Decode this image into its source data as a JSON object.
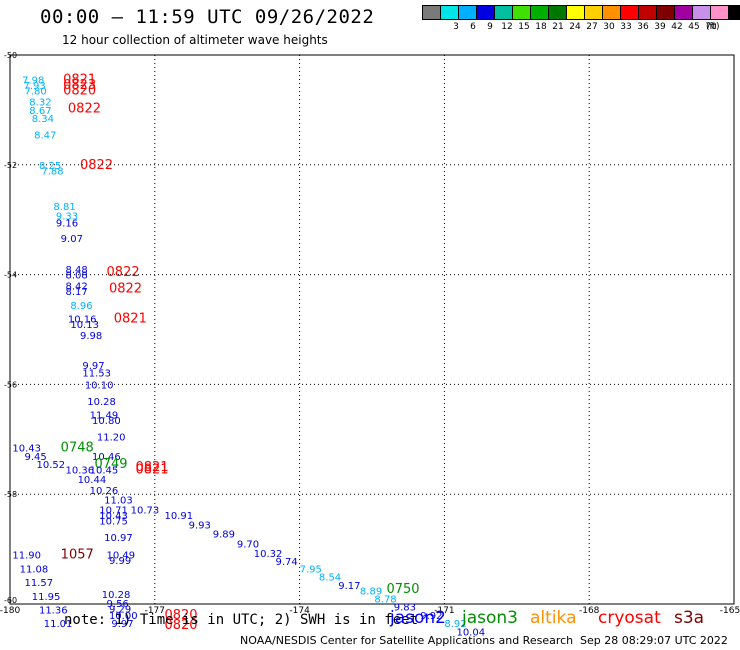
{
  "header": {
    "title": "00:00 — 11:59 UTC 09/26/2022",
    "subtitle": "12 hour collection of altimeter wave heights"
  },
  "legend": {
    "unit": "(ft)",
    "items": [
      {
        "label": "",
        "color": "#7a7a7a"
      },
      {
        "label": "3",
        "color": "#00e5e5"
      },
      {
        "label": "6",
        "color": "#00b0ff"
      },
      {
        "label": "9",
        "color": "#0000e0"
      },
      {
        "label": "12",
        "color": "#00c0a0"
      },
      {
        "label": "15",
        "color": "#40e000"
      },
      {
        "label": "18",
        "color": "#00b000"
      },
      {
        "label": "21",
        "color": "#007800"
      },
      {
        "label": "24",
        "color": "#ffff00"
      },
      {
        "label": "27",
        "color": "#ffd000"
      },
      {
        "label": "30",
        "color": "#ff9000"
      },
      {
        "label": "33",
        "color": "#ff0000"
      },
      {
        "label": "36",
        "color": "#c00000"
      },
      {
        "label": "39",
        "color": "#800000"
      },
      {
        "label": "42",
        "color": "#a000a0"
      },
      {
        "label": "45",
        "color": "#c890e8"
      },
      {
        "label": "70",
        "color": "#ff90c8"
      },
      {
        "label": "",
        "color": "#000000"
      }
    ]
  },
  "footer": {
    "note": "note: 1) Time is in UTC; 2) SWH is in feet",
    "satellites": [
      {
        "name": "jason2",
        "color": "#0000ff"
      },
      {
        "name": "jason3",
        "color": "#009000"
      },
      {
        "name": "altika",
        "color": "#ff9000"
      },
      {
        "name": "cryosat",
        "color": "#ff0000"
      },
      {
        "name": "s3a",
        "color": "#800000"
      }
    ],
    "credit": "NOAA/NESDIS Center for Satellite Applications and Research",
    "timestamp": "Sep 28 08:29:07 UTC 2022"
  },
  "chart_data": {
    "type": "scatter",
    "xlim": [
      -180,
      -165
    ],
    "ylim": [
      -60,
      -50
    ],
    "x_ticks": [
      "-180",
      "-177",
      "-174",
      "-171",
      "-168",
      "-165"
    ],
    "y_ticks": [
      "-50",
      "-52",
      "-54",
      "-56",
      "-58",
      "-60"
    ],
    "grid": true,
    "labels": [
      {
        "x": -179.75,
        "y": -50.45,
        "text": "7.98",
        "color": "#00b0ff"
      },
      {
        "x": -179.72,
        "y": -50.55,
        "text": "7.93",
        "color": "#00b0ff"
      },
      {
        "x": -179.7,
        "y": -50.65,
        "text": "7.80",
        "color": "#00b0ff"
      },
      {
        "x": -178.9,
        "y": -50.45,
        "text": "0821",
        "color": "#ff0000"
      },
      {
        "x": -178.9,
        "y": -50.55,
        "text": "0823",
        "color": "#ff0000"
      },
      {
        "x": -178.9,
        "y": -50.65,
        "text": "0820",
        "color": "#ff0000"
      },
      {
        "x": -179.6,
        "y": -50.85,
        "text": "8.32",
        "color": "#00b0ff"
      },
      {
        "x": -179.6,
        "y": -51.0,
        "text": "8.67",
        "color": "#00b0ff"
      },
      {
        "x": -178.8,
        "y": -50.97,
        "text": "0822",
        "color": "#ff0000"
      },
      {
        "x": -179.55,
        "y": -51.15,
        "text": "8.34",
        "color": "#00b0ff"
      },
      {
        "x": -179.5,
        "y": -51.45,
        "text": "8.47",
        "color": "#00b0ff"
      },
      {
        "x": -179.4,
        "y": -52.0,
        "text": "8.25",
        "color": "#00b0ff"
      },
      {
        "x": -179.35,
        "y": -52.1,
        "text": "7.88",
        "color": "#00b0ff"
      },
      {
        "x": -178.55,
        "y": -52.0,
        "text": "0822",
        "color": "#ff0000"
      },
      {
        "x": -179.1,
        "y": -52.75,
        "text": "8.81",
        "color": "#00b0ff"
      },
      {
        "x": -179.05,
        "y": -52.92,
        "text": "9.33",
        "color": "#00b0ff"
      },
      {
        "x": -179.05,
        "y": -53.05,
        "text": "9.16",
        "color": "#0000e0"
      },
      {
        "x": -178.95,
        "y": -53.33,
        "text": "9.07",
        "color": "#0000e0"
      },
      {
        "x": -178.85,
        "y": -53.9,
        "text": "8.48",
        "color": "#0000e0"
      },
      {
        "x": -178.85,
        "y": -54.0,
        "text": "8.08",
        "color": "#0000e0"
      },
      {
        "x": -178.0,
        "y": -53.95,
        "text": "0822",
        "color": "#ff0000"
      },
      {
        "x": -178.85,
        "y": -54.2,
        "text": "8.42",
        "color": "#0000e0"
      },
      {
        "x": -178.85,
        "y": -54.3,
        "text": "8.17",
        "color": "#0000e0"
      },
      {
        "x": -177.95,
        "y": -54.25,
        "text": "0822",
        "color": "#ff0000"
      },
      {
        "x": -178.75,
        "y": -54.55,
        "text": "8.96",
        "color": "#00b0ff"
      },
      {
        "x": -178.8,
        "y": -54.8,
        "text": "10.16",
        "color": "#0000e0"
      },
      {
        "x": -178.75,
        "y": -54.9,
        "text": "10.13",
        "color": "#0000e0"
      },
      {
        "x": -177.85,
        "y": -54.8,
        "text": "0821",
        "color": "#ff0000"
      },
      {
        "x": -178.55,
        "y": -55.1,
        "text": "9.98",
        "color": "#0000e0"
      },
      {
        "x": -178.5,
        "y": -55.65,
        "text": "9.97",
        "color": "#0000e0"
      },
      {
        "x": -178.5,
        "y": -55.78,
        "text": "11.53",
        "color": "#0000e0"
      },
      {
        "x": -178.45,
        "y": -56.0,
        "text": "10.10",
        "color": "#0000e0"
      },
      {
        "x": -178.4,
        "y": -56.3,
        "text": "10.28",
        "color": "#0000e0"
      },
      {
        "x": -178.35,
        "y": -56.55,
        "text": "11.49",
        "color": "#0000e0"
      },
      {
        "x": -178.3,
        "y": -56.65,
        "text": "10.80",
        "color": "#0000e0"
      },
      {
        "x": -178.2,
        "y": -56.95,
        "text": "11.20",
        "color": "#0000e0"
      },
      {
        "x": -179.95,
        "y": -57.15,
        "text": "10.43",
        "color": "#0000e0"
      },
      {
        "x": -178.95,
        "y": -57.15,
        "text": "0748",
        "color": "#009000"
      },
      {
        "x": -179.7,
        "y": -57.3,
        "text": "9.45",
        "color": "#0000e0"
      },
      {
        "x": -178.3,
        "y": -57.3,
        "text": "10.46",
        "color": "#0000e0"
      },
      {
        "x": -179.45,
        "y": -57.45,
        "text": "10.52",
        "color": "#0000e0"
      },
      {
        "x": -178.25,
        "y": -57.45,
        "text": "0749",
        "color": "#009000"
      },
      {
        "x": -177.4,
        "y": -57.5,
        "text": "0821",
        "color": "#ff0000"
      },
      {
        "x": -178.85,
        "y": -57.55,
        "text": "10.36",
        "color": "#0000e0"
      },
      {
        "x": -178.35,
        "y": -57.55,
        "text": "10.45",
        "color": "#0000e0"
      },
      {
        "x": -177.4,
        "y": -57.55,
        "text": "0821",
        "color": "#ff0000"
      },
      {
        "x": -178.6,
        "y": -57.72,
        "text": "10.44",
        "color": "#0000e0"
      },
      {
        "x": -178.35,
        "y": -57.92,
        "text": "10.26",
        "color": "#0000e0"
      },
      {
        "x": -178.05,
        "y": -58.1,
        "text": "11.03",
        "color": "#0000e0"
      },
      {
        "x": -178.15,
        "y": -58.28,
        "text": "10.71",
        "color": "#0000e0"
      },
      {
        "x": -177.5,
        "y": -58.28,
        "text": "10.73",
        "color": "#0000e0"
      },
      {
        "x": -178.15,
        "y": -58.38,
        "text": "10.43",
        "color": "#0000e0"
      },
      {
        "x": -176.8,
        "y": -58.38,
        "text": "10.91",
        "color": "#0000e0"
      },
      {
        "x": -178.15,
        "y": -58.48,
        "text": "10.75",
        "color": "#0000e0"
      },
      {
        "x": -176.3,
        "y": -58.55,
        "text": "9.93",
        "color": "#0000e0"
      },
      {
        "x": -178.05,
        "y": -58.78,
        "text": "10.97",
        "color": "#0000e0"
      },
      {
        "x": -175.8,
        "y": -58.72,
        "text": "9.89",
        "color": "#0000e0"
      },
      {
        "x": -175.3,
        "y": -58.9,
        "text": "9.70",
        "color": "#0000e0"
      },
      {
        "x": -174.95,
        "y": -59.07,
        "text": "10.32",
        "color": "#0000e0"
      },
      {
        "x": -179.95,
        "y": -59.1,
        "text": "11.90",
        "color": "#0000e0"
      },
      {
        "x": -178.95,
        "y": -59.1,
        "text": "1057",
        "color": "#800000"
      },
      {
        "x": -178.0,
        "y": -59.1,
        "text": "10.49",
        "color": "#0000e0"
      },
      {
        "x": -174.5,
        "y": -59.22,
        "text": "9.74",
        "color": "#0000e0"
      },
      {
        "x": -177.95,
        "y": -59.2,
        "text": "9.99",
        "color": "#0000e0"
      },
      {
        "x": -179.8,
        "y": -59.35,
        "text": "11.08",
        "color": "#0000e0"
      },
      {
        "x": -174.0,
        "y": -59.35,
        "text": "7.95",
        "color": "#00b0ff"
      },
      {
        "x": -173.6,
        "y": -59.5,
        "text": "8.54",
        "color": "#00b0ff"
      },
      {
        "x": -179.7,
        "y": -59.6,
        "text": "11.57",
        "color": "#0000e0"
      },
      {
        "x": -173.2,
        "y": -59.65,
        "text": "9.17",
        "color": "#0000e0"
      },
      {
        "x": -172.75,
        "y": -59.75,
        "text": "8.89",
        "color": "#00b0ff"
      },
      {
        "x": -172.2,
        "y": -59.73,
        "text": "0750",
        "color": "#009000"
      },
      {
        "x": -179.55,
        "y": -59.85,
        "text": "11.95",
        "color": "#0000e0"
      },
      {
        "x": -178.1,
        "y": -59.82,
        "text": "10.28",
        "color": "#0000e0"
      },
      {
        "x": -172.45,
        "y": -59.9,
        "text": "8.78",
        "color": "#00b0ff"
      },
      {
        "x": -178.0,
        "y": -59.98,
        "text": "9.56",
        "color": "#0000e0"
      },
      {
        "x": -172.05,
        "y": -60.05,
        "text": "9.83",
        "color": "#0000e0"
      },
      {
        "x": -179.4,
        "y": -60.1,
        "text": "11.36",
        "color": "#0000e0"
      },
      {
        "x": -177.95,
        "y": -60.08,
        "text": "9.29",
        "color": "#0000e0"
      },
      {
        "x": -171.5,
        "y": -60.2,
        "text": "9.92",
        "color": "#0000e0"
      },
      {
        "x": -177.95,
        "y": -60.2,
        "text": "10.00",
        "color": "#0000e0"
      },
      {
        "x": -176.8,
        "y": -60.2,
        "text": "0820",
        "color": "#ff0000"
      },
      {
        "x": -179.3,
        "y": -60.35,
        "text": "11.01",
        "color": "#0000e0"
      },
      {
        "x": -177.9,
        "y": -60.35,
        "text": "9.97",
        "color": "#0000e0"
      },
      {
        "x": -176.8,
        "y": -60.38,
        "text": "0820",
        "color": "#ff0000"
      },
      {
        "x": -171.0,
        "y": -60.35,
        "text": "8.92",
        "color": "#00b0ff"
      },
      {
        "x": -170.75,
        "y": -60.5,
        "text": "10.04",
        "color": "#0000e0"
      }
    ]
  }
}
